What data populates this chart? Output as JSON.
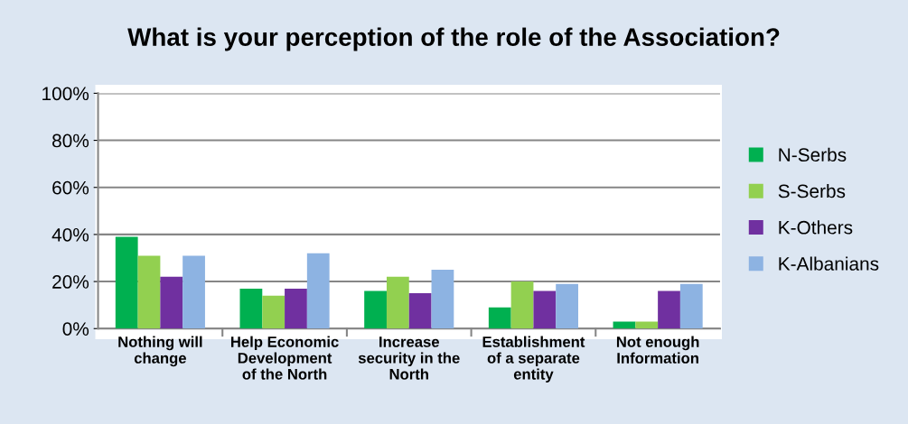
{
  "chart_data": {
    "type": "bar",
    "title": "What is your perception of the role of the Association?",
    "categories": [
      "Nothing will\nchange",
      "Help Economic\nDevelopment\nof the North",
      "Increase\nsecurity in the\nNorth",
      "Establishment\nof a separate\nentity",
      "Not enough\nInformation"
    ],
    "series": [
      {
        "name": "N-Serbs",
        "color": "#00b050",
        "values": [
          39,
          17,
          16,
          9,
          3
        ]
      },
      {
        "name": "S-Serbs",
        "color": "#92d050",
        "values": [
          31,
          14,
          22,
          20,
          3
        ]
      },
      {
        "name": "K-Others",
        "color": "#7030a0",
        "values": [
          22,
          17,
          15,
          16,
          16
        ]
      },
      {
        "name": "K-Albanians",
        "color": "#8db3e2",
        "values": [
          31,
          32,
          25,
          19,
          19
        ]
      }
    ],
    "ylim": [
      0,
      100
    ],
    "yticks": [
      {
        "value": 0,
        "label": "0%"
      },
      {
        "value": 20,
        "label": "20%"
      },
      {
        "value": 40,
        "label": "40%"
      },
      {
        "value": 60,
        "label": "60%"
      },
      {
        "value": 80,
        "label": "80%"
      },
      {
        "value": 100,
        "label": "100%"
      }
    ],
    "grid": "y",
    "legend": "right"
  }
}
